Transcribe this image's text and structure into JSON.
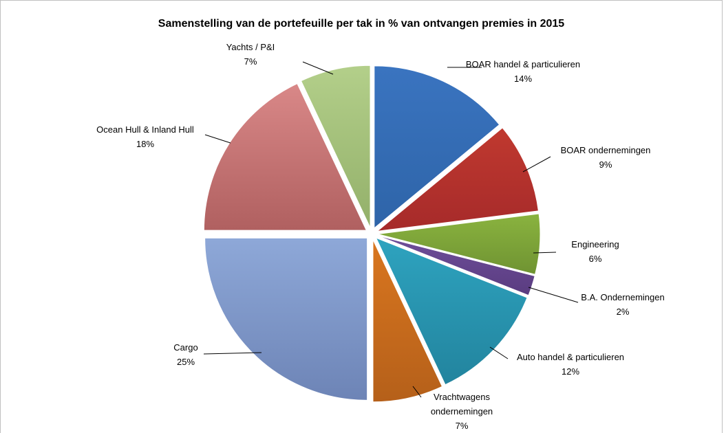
{
  "chart_data": {
    "type": "pie",
    "title": "Samenstelling van de portefeuille per tak in % van ontvangen premies in 2015",
    "slices": [
      {
        "label": "BOAR handel & particulieren",
        "percent_label": "14%",
        "value": 14,
        "color": "#2e64a8",
        "color_light": "#3a74c0"
      },
      {
        "label": "BOAR ondernemingen",
        "percent_label": "9%",
        "value": 9,
        "color": "#a62a2a",
        "color_light": "#c0392f"
      },
      {
        "label": "Engineering",
        "percent_label": "6%",
        "value": 6,
        "color": "#6f9332",
        "color_light": "#8ab33f"
      },
      {
        "label": "B.A. Ondernemingen",
        "percent_label": "2%",
        "value": 2,
        "color": "#5a3c80",
        "color_light": "#6e4e9a"
      },
      {
        "label": "Auto handel & particulieren",
        "percent_label": "12%",
        "value": 12,
        "color": "#22849e",
        "color_light": "#2ea3bf"
      },
      {
        "label": "Vrachtwagens ondernemingen",
        "percent_label": "7%",
        "value": 7,
        "color": "#b5601a",
        "color_light": "#d9761f"
      },
      {
        "label": "Cargo",
        "percent_label": "25%",
        "value": 25,
        "color": "#6d84b6",
        "color_light": "#8ea8d8"
      },
      {
        "label": "Ocean Hull & Inland Hull",
        "percent_label": "18%",
        "value": 18,
        "color": "#b06060",
        "color_light": "#d98888"
      },
      {
        "label": "Yachts / P&I",
        "percent_label": "7%",
        "value": 7,
        "color": "#93b06a",
        "color_light": "#b3cf8a"
      }
    ]
  }
}
